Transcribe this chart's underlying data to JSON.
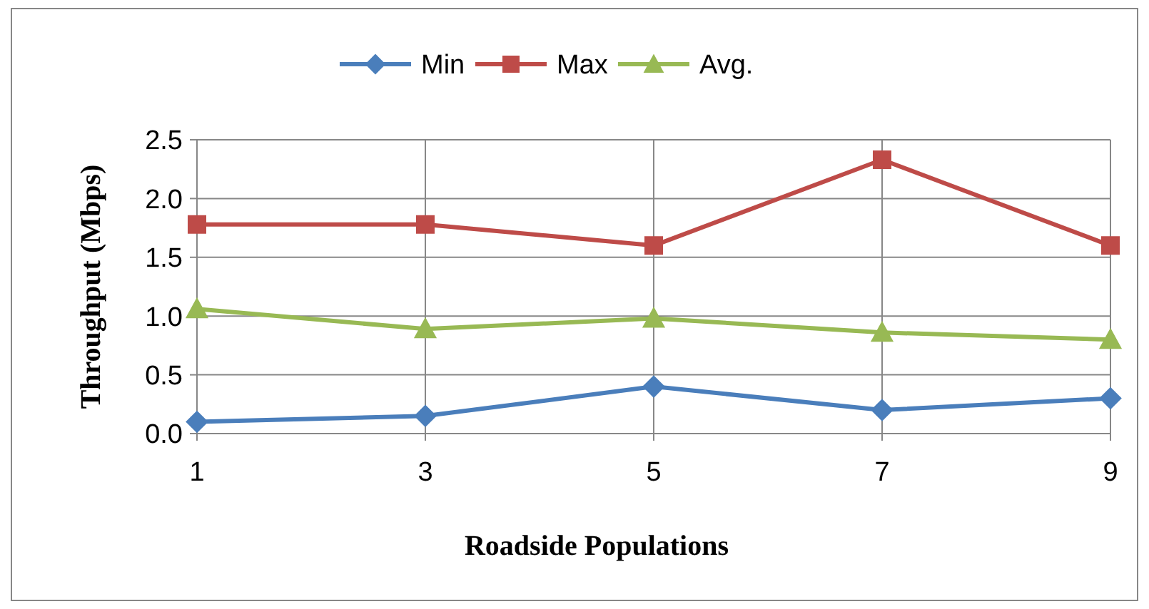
{
  "chart_data": {
    "type": "line",
    "xlabel": "Roadside Populations",
    "ylabel": "Throughput  (Mbps)",
    "categories": [
      "1",
      "3",
      "5",
      "7",
      "9"
    ],
    "series": [
      {
        "name": "Min",
        "color": "#4a7ebb",
        "marker": "diamond",
        "values": [
          0.1,
          0.15,
          0.4,
          0.2,
          0.3
        ]
      },
      {
        "name": "Max",
        "color": "#be4b48",
        "marker": "square",
        "values": [
          1.78,
          1.78,
          1.6,
          2.33,
          1.6
        ]
      },
      {
        "name": "Avg.",
        "color": "#98b954",
        "marker": "triangle",
        "values": [
          1.06,
          0.89,
          0.98,
          0.86,
          0.8
        ]
      }
    ],
    "ylim": [
      0,
      2.5
    ],
    "yticks": [
      {
        "value": 0,
        "label": "0.0"
      },
      {
        "value": 0.5,
        "label": "0.5"
      },
      {
        "value": 1,
        "label": "1.0"
      },
      {
        "value": 1.5,
        "label": "1.5"
      },
      {
        "value": 2,
        "label": "2.0"
      },
      {
        "value": 2.5,
        "label": "2.5"
      }
    ],
    "grid": true,
    "legend": "top"
  }
}
